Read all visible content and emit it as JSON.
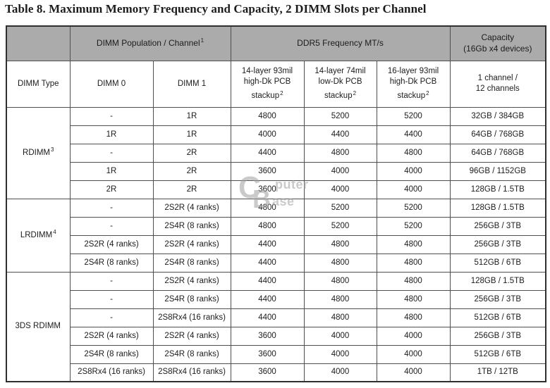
{
  "title": "Table 8. Maximum Memory Frequency and Capacity, 2 DIMM Slots per Channel",
  "table": {
    "colors": {
      "header_bg": "#ababab",
      "border": "#4f4f4f",
      "border_dark": "#2f2f2f",
      "text": "#1c1c1c"
    },
    "header_row1": {
      "corner": "",
      "dimm_population": {
        "text": "DIMM Population / Channel",
        "sup": "1"
      },
      "ddr5_frequency": "DDR5 Frequency MT/s",
      "capacity": {
        "line1": "Capacity",
        "line2": "(16Gb x4 devices)"
      }
    },
    "header_row2": {
      "dimm_type": "DIMM Type",
      "dimm0": "DIMM 0",
      "dimm1": "DIMM 1",
      "stackup_a": {
        "line1": "14-layer 93mil",
        "line2": "high-Dk PCB",
        "line3": "stackup",
        "sup": "2"
      },
      "stackup_b": {
        "line1": "14-layer 74mil",
        "line2": "low-Dk PCB",
        "line3": "stackup",
        "sup": "2"
      },
      "stackup_c": {
        "line1": "16-layer 93mil",
        "line2": "high-Dk PCB",
        "line3": "stackup",
        "sup": "2"
      },
      "channels": {
        "line1": "1 channel /",
        "line2": "12 channels"
      }
    },
    "sections": [
      {
        "label": "RDIMM",
        "sup": "3",
        "rows": [
          [
            "-",
            "1R",
            "4800",
            "5200",
            "5200",
            "32GB / 384GB"
          ],
          [
            "1R",
            "1R",
            "4000",
            "4400",
            "4400",
            "64GB / 768GB"
          ],
          [
            "-",
            "2R",
            "4400",
            "4800",
            "4800",
            "64GB / 768GB"
          ],
          [
            "1R",
            "2R",
            "3600",
            "4000",
            "4000",
            "96GB / 1152GB"
          ],
          [
            "2R",
            "2R",
            "3600",
            "4000",
            "4000",
            "128GB / 1.5TB"
          ]
        ]
      },
      {
        "label": "LRDIMM",
        "sup": "4",
        "rows": [
          [
            "-",
            "2S2R (4 ranks)",
            "4800",
            "5200",
            "5200",
            "128GB / 1.5TB"
          ],
          [
            "-",
            "2S4R (8 ranks)",
            "4800",
            "5200",
            "5200",
            "256GB / 3TB"
          ],
          [
            "2S2R (4 ranks)",
            "2S2R (4 ranks)",
            "4400",
            "4800",
            "4800",
            "256GB / 3TB"
          ],
          [
            "2S4R (8 ranks)",
            "2S4R (8 ranks)",
            "4400",
            "4800",
            "4800",
            "512GB / 6TB"
          ]
        ]
      },
      {
        "label": "3DS RDIMM",
        "sup": "",
        "rows": [
          [
            "-",
            "2S2R (4 ranks)",
            "4400",
            "4800",
            "4800",
            "128GB / 1.5TB"
          ],
          [
            "-",
            "2S4R (8 ranks)",
            "4400",
            "4800",
            "4800",
            "256GB / 3TB"
          ],
          [
            "-",
            "2S8Rx4 (16 ranks)",
            "4400",
            "4800",
            "4800",
            "512GB / 6TB"
          ],
          [
            "2S2R (4 ranks)",
            "2S2R (4 ranks)",
            "3600",
            "4000",
            "4000",
            "256GB / 3TB"
          ],
          [
            "2S4R (8 ranks)",
            "2S4R (8 ranks)",
            "3600",
            "4000",
            "4000",
            "512GB / 6TB"
          ],
          [
            "2S8Rx4 (16 ranks)",
            "2S8Rx4 (16 ranks)",
            "3600",
            "4000",
            "4000",
            "1TB / 12TB"
          ]
        ]
      }
    ]
  },
  "watermark": {
    "big_c": "C",
    "big_b": "B",
    "line1": "puter",
    "line2": "ase"
  }
}
